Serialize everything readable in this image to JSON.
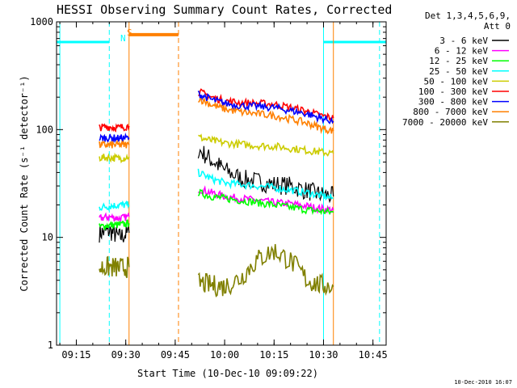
{
  "chart_data": {
    "type": "line",
    "title": "HESSI Observing Summary Count Rates, Corrected",
    "xlabel": "Start Time (10-Dec-10 09:09:22)",
    "ylabel": "Corrected Count Rate (s⁻¹ detector⁻¹)",
    "y_scale": "log",
    "ylim": [
      1,
      1000
    ],
    "xlim": [
      "09:09",
      "10:49"
    ],
    "x_ticks": [
      "09:15",
      "09:30",
      "09:45",
      "10:00",
      "10:15",
      "10:30",
      "10:45"
    ],
    "y_ticks": [
      "1",
      "10",
      "100",
      "1000"
    ],
    "legend": {
      "placement": "right",
      "header": [
        "Det 1,3,4,5,6,9,",
        "Att 0"
      ]
    },
    "grid": false,
    "series": [
      {
        "name": "3 - 6 keV",
        "color": "#000000",
        "segments": [
          {
            "x": [
              "09:22",
              "09:25",
              "09:28",
              "09:31"
            ],
            "y": [
              11,
              11.5,
              10,
              11
            ]
          },
          {
            "x": [
              "09:52",
              "09:56",
              "10:00",
              "10:05",
              "10:10",
              "10:15",
              "10:20",
              "10:25",
              "10:29",
              "10:33"
            ],
            "y": [
              65,
              52,
              42,
              35,
              33,
              31,
              30,
              27,
              25,
              24
            ]
          }
        ]
      },
      {
        "name": "6 - 12 keV",
        "color": "#ff00ff",
        "segments": [
          {
            "x": [
              "09:22",
              "09:25",
              "09:28",
              "09:31"
            ],
            "y": [
              15,
              15.5,
              15,
              15.5
            ]
          },
          {
            "x": [
              "09:52",
              "09:56",
              "10:00",
              "10:05",
              "10:10",
              "10:15",
              "10:20",
              "10:25",
              "10:29",
              "10:33"
            ],
            "y": [
              28,
              26,
              24,
              23,
              22,
              21,
              20.5,
              19.5,
              18.5,
              18
            ]
          }
        ]
      },
      {
        "name": "12 - 25 keV",
        "color": "#00ff00",
        "segments": [
          {
            "x": [
              "09:22",
              "09:25",
              "09:28",
              "09:31"
            ],
            "y": [
              12.5,
              13,
              13,
              13.5
            ]
          },
          {
            "x": [
              "09:52",
              "09:56",
              "10:00",
              "10:05",
              "10:10",
              "10:15",
              "10:20",
              "10:25",
              "10:29",
              "10:33"
            ],
            "y": [
              26,
              24,
              23,
              22,
              21,
              20,
              19,
              18,
              17.5,
              17
            ]
          }
        ]
      },
      {
        "name": "25 - 50 keV",
        "color": "#00ffff",
        "segments": [
          {
            "x": [
              "09:22",
              "09:25",
              "09:28",
              "09:31"
            ],
            "y": [
              19,
              19.5,
              20,
              20
            ]
          },
          {
            "x": [
              "09:52",
              "09:56",
              "10:00",
              "10:05",
              "10:10",
              "10:15",
              "10:20",
              "10:25",
              "10:29",
              "10:33"
            ],
            "y": [
              40,
              35,
              32,
              31,
              30,
              29,
              27.5,
              26,
              24.5,
              23
            ]
          }
        ]
      },
      {
        "name": "50 - 100 keV",
        "color": "#cccc00",
        "segments": [
          {
            "x": [
              "09:22",
              "09:25",
              "09:28",
              "09:31"
            ],
            "y": [
              55,
              55,
              54,
              56
            ]
          },
          {
            "x": [
              "09:52",
              "09:56",
              "10:00",
              "10:05",
              "10:10",
              "10:15",
              "10:20",
              "10:25",
              "10:29",
              "10:33"
            ],
            "y": [
              85,
              79,
              75,
              73,
              71,
              70,
              67,
              64,
              62,
              60
            ]
          }
        ]
      },
      {
        "name": "100 - 300 keV",
        "color": "#ff0000",
        "segments": [
          {
            "x": [
              "09:22",
              "09:25",
              "09:28",
              "09:31"
            ],
            "y": [
              105,
              106,
              104,
              108
            ]
          },
          {
            "x": [
              "09:52",
              "09:56",
              "10:00",
              "10:05",
              "10:10",
              "10:15",
              "10:20",
              "10:25",
              "10:29",
              "10:33"
            ],
            "y": [
              225,
              200,
              185,
              178,
              175,
              172,
              160,
              148,
              135,
              128
            ]
          }
        ]
      },
      {
        "name": "300 - 800 keV",
        "color": "#0000ff",
        "segments": [
          {
            "x": [
              "09:22",
              "09:25",
              "09:28",
              "09:31"
            ],
            "y": [
              83,
              84,
              83,
              84
            ]
          },
          {
            "x": [
              "09:52",
              "09:56",
              "10:00",
              "10:05",
              "10:10",
              "10:15",
              "10:20",
              "10:25",
              "10:29",
              "10:33"
            ],
            "y": [
              215,
              190,
              175,
              167,
              164,
              160,
              150,
              140,
              128,
              120
            ]
          }
        ]
      },
      {
        "name": "800 - 7000 keV",
        "color": "#ff8000",
        "segments": [
          {
            "x": [
              "09:22",
              "09:25",
              "09:28",
              "09:31"
            ],
            "y": [
              72,
              72,
              72,
              72
            ]
          },
          {
            "x": [
              "09:52",
              "09:56",
              "10:00",
              "10:05",
              "10:10",
              "10:15",
              "10:20",
              "10:25",
              "10:29",
              "10:33"
            ],
            "y": [
              195,
              170,
              155,
              145,
              140,
              135,
              125,
              115,
              104,
              97
            ]
          }
        ]
      },
      {
        "name": "7000 - 20000 keV",
        "color": "#808000",
        "segments": [
          {
            "x": [
              "09:22",
              "09:25",
              "09:28",
              "09:31"
            ],
            "y": [
              5.2,
              5.3,
              5.2,
              5.3
            ]
          },
          {
            "x": [
              "09:52",
              "09:56",
              "10:00",
              "10:05",
              "10:10",
              "10:15",
              "10:20",
              "10:25",
              "10:29",
              "10:33"
            ],
            "y": [
              3.8,
              3.6,
              3.5,
              4.2,
              6.2,
              7.5,
              6.0,
              4.0,
              3.6,
              3.5
            ]
          }
        ]
      }
    ],
    "annotations": {
      "night": {
        "color": "#00ffff",
        "bars": [
          [
            "09:09",
            "09:25"
          ],
          [
            "10:30",
            "10:49"
          ]
        ],
        "solid_lines": [
          "09:10",
          "10:30"
        ],
        "dashed_lines": [
          "09:25",
          "10:47"
        ],
        "label": "N"
      },
      "saa": {
        "color": "#ff8000",
        "bars": [
          [
            "09:31",
            "09:46"
          ]
        ],
        "solid_lines": [
          "09:31",
          "10:33"
        ],
        "dashed_lines": [
          "09:46"
        ],
        "label": "S"
      }
    },
    "timestamp": "10-Dec-2010 16:07"
  }
}
